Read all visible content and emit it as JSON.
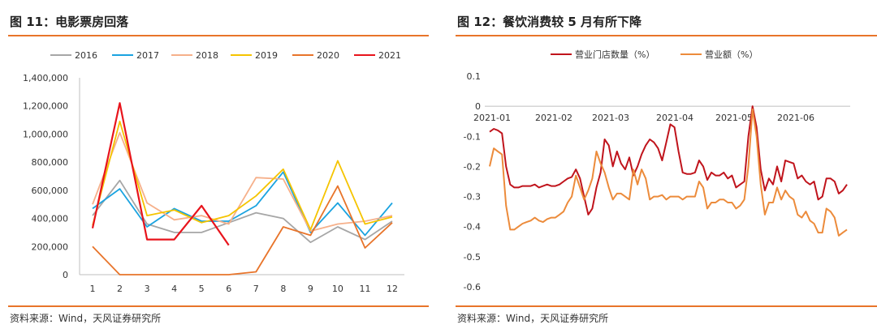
{
  "left": {
    "title": "图 11：电影票房回落",
    "source": "资料来源：Wind，天风证券研究所"
  },
  "right": {
    "title": "图 12：餐饮消费较 5 月有所下降",
    "source": "资料来源：Wind，天风证券研究所"
  },
  "chart_data": [
    {
      "type": "line",
      "categories": [
        "1",
        "2",
        "3",
        "4",
        "5",
        "6",
        "7",
        "8",
        "9",
        "10",
        "11",
        "12"
      ],
      "y_ticks": [
        "0",
        "200,000",
        "400,000",
        "600,000",
        "800,000",
        "1,000,000",
        "1,200,000",
        "1,400,000"
      ],
      "ylim": [
        0,
        1400000
      ],
      "grid": false,
      "legend_position": "top",
      "series": [
        {
          "name": "2016",
          "color": "#a6a6a6",
          "values": [
            420000,
            670000,
            360000,
            300000,
            300000,
            370000,
            440000,
            400000,
            230000,
            340000,
            250000,
            380000
          ]
        },
        {
          "name": "2017",
          "color": "#1aa3e0",
          "values": [
            470000,
            610000,
            340000,
            470000,
            380000,
            380000,
            490000,
            730000,
            300000,
            510000,
            280000,
            510000
          ]
        },
        {
          "name": "2018",
          "color": "#f6b08a",
          "values": [
            500000,
            1010000,
            510000,
            390000,
            420000,
            360000,
            690000,
            680000,
            310000,
            360000,
            380000,
            420000
          ]
        },
        {
          "name": "2019",
          "color": "#f5c400",
          "values": [
            350000,
            1090000,
            420000,
            460000,
            370000,
            420000,
            560000,
            750000,
            320000,
            810000,
            360000,
            410000
          ]
        },
        {
          "name": "2020",
          "color": "#e8742a",
          "values": [
            200000,
            0,
            0,
            0,
            0,
            0,
            20000,
            340000,
            280000,
            630000,
            190000,
            370000
          ]
        },
        {
          "name": "2021",
          "color": "#e8141c",
          "values": [
            330000,
            1220000,
            250000,
            250000,
            490000,
            210000,
            null,
            null,
            null,
            null,
            null,
            null
          ]
        }
      ]
    },
    {
      "type": "line",
      "x_ticks": [
        "2021-01",
        "2021-02",
        "2021-03",
        "2021-04",
        "2021-05",
        "2021-06"
      ],
      "y_ticks": [
        "0.1",
        "0",
        "-0.1",
        "-0.2",
        "-0.3",
        "-0.4",
        "-0.5",
        "-0.6"
      ],
      "ylim": [
        -0.6,
        0.1
      ],
      "grid": false,
      "legend_position": "top",
      "series": [
        {
          "name": "营业门店数量（%）",
          "color": "#c0141c",
          "values": [
            -0.085,
            -0.075,
            -0.08,
            -0.09,
            -0.2,
            -0.26,
            -0.27,
            -0.27,
            -0.265,
            -0.265,
            -0.265,
            -0.26,
            -0.27,
            -0.265,
            -0.26,
            -0.265,
            -0.265,
            -0.26,
            -0.25,
            -0.24,
            -0.235,
            -0.21,
            -0.24,
            -0.3,
            -0.36,
            -0.34,
            -0.27,
            -0.22,
            -0.11,
            -0.13,
            -0.2,
            -0.15,
            -0.19,
            -0.21,
            -0.17,
            -0.23,
            -0.2,
            -0.16,
            -0.13,
            -0.11,
            -0.12,
            -0.14,
            -0.18,
            -0.12,
            -0.06,
            -0.07,
            -0.15,
            -0.22,
            -0.225,
            -0.225,
            -0.22,
            -0.18,
            -0.2,
            -0.245,
            -0.22,
            -0.23,
            -0.23,
            -0.22,
            -0.24,
            -0.23,
            -0.27,
            -0.26,
            -0.25,
            -0.1,
            0.0,
            -0.07,
            -0.21,
            -0.28,
            -0.24,
            -0.26,
            -0.2,
            -0.25,
            -0.18,
            -0.185,
            -0.19,
            -0.24,
            -0.23,
            -0.25,
            -0.26,
            -0.25,
            -0.31,
            -0.3,
            -0.24,
            -0.24,
            -0.25,
            -0.29,
            -0.28,
            -0.26
          ]
        },
        {
          "name": "营业额（%）",
          "color": "#ec8b3b",
          "values": [
            -0.2,
            -0.14,
            -0.15,
            -0.16,
            -0.33,
            -0.41,
            -0.41,
            -0.4,
            -0.39,
            -0.385,
            -0.38,
            -0.37,
            -0.38,
            -0.385,
            -0.375,
            -0.37,
            -0.37,
            -0.36,
            -0.35,
            -0.32,
            -0.3,
            -0.23,
            -0.27,
            -0.31,
            -0.28,
            -0.24,
            -0.15,
            -0.19,
            -0.22,
            -0.27,
            -0.31,
            -0.29,
            -0.29,
            -0.3,
            -0.31,
            -0.21,
            -0.26,
            -0.21,
            -0.24,
            -0.31,
            -0.3,
            -0.3,
            -0.295,
            -0.31,
            -0.3,
            -0.3,
            -0.3,
            -0.31,
            -0.3,
            -0.3,
            -0.3,
            -0.25,
            -0.27,
            -0.34,
            -0.32,
            -0.32,
            -0.31,
            -0.31,
            -0.32,
            -0.32,
            -0.34,
            -0.33,
            -0.31,
            -0.2,
            -0.01,
            -0.1,
            -0.26,
            -0.36,
            -0.32,
            -0.32,
            -0.27,
            -0.31,
            -0.28,
            -0.3,
            -0.31,
            -0.36,
            -0.37,
            -0.35,
            -0.38,
            -0.39,
            -0.42,
            -0.42,
            -0.34,
            -0.35,
            -0.37,
            -0.43,
            -0.42,
            -0.41
          ]
        }
      ]
    }
  ]
}
